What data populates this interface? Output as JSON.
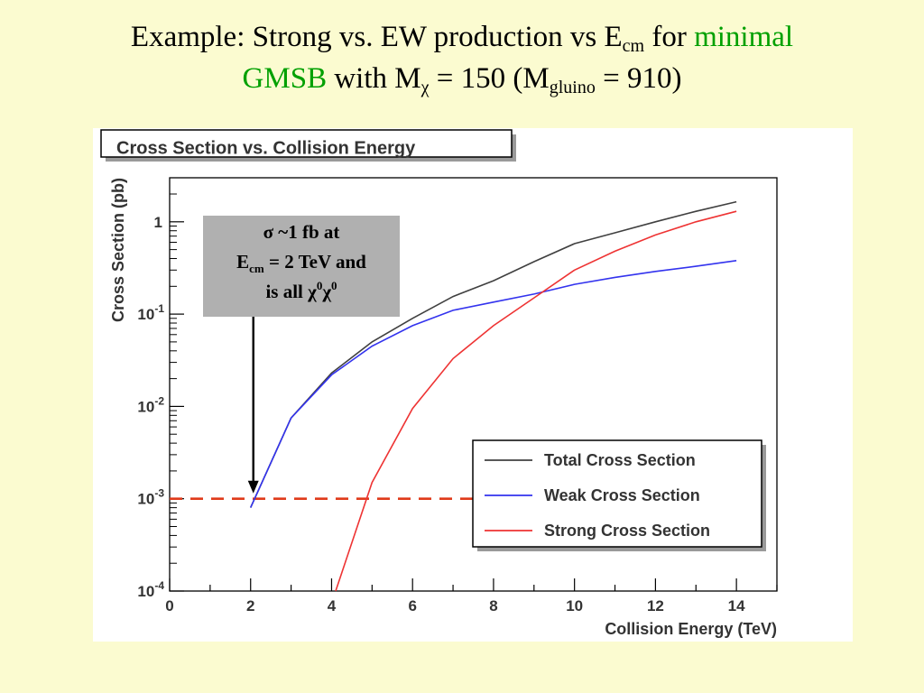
{
  "slide": {
    "title_line1_a": "Example: Strong vs. EW production vs E",
    "title_line1_sub": "cm",
    "title_line1_b": " for ",
    "title_line1_green": "minimal",
    "title_line2_green": "GMSB",
    "title_line2_a": " with M",
    "title_line2_sub1": "χ",
    "title_line2_b": " = 150 (M",
    "title_line2_sub2": "gluino",
    "title_line2_c": " = 910)"
  },
  "annotation": {
    "line1": "σ ~1 fb at",
    "line2_a": "E",
    "line2_sub": "cm",
    "line2_b": " = 2 TeV and",
    "line3_a": "is all χ",
    "line3_sup1": "0",
    "line3_mid": "χ",
    "line3_sup2": "0",
    "box_color": "#b0b0b0"
  },
  "chart_data": {
    "type": "line",
    "title": "Cross Section vs. Collision Energy",
    "xlabel": "Collision Energy (TeV)",
    "ylabel": "Cross Section (pb)",
    "xlim": [
      0,
      15
    ],
    "ylim": [
      0.0001,
      3
    ],
    "ylog": true,
    "x_ticks": [
      0,
      2,
      4,
      6,
      8,
      10,
      12,
      14
    ],
    "x_tick_labels": [
      "0",
      "2",
      "4",
      "6",
      "8",
      "10",
      "12",
      "14"
    ],
    "y_ticks": [
      0.0001,
      0.001,
      0.01,
      0.1,
      1
    ],
    "y_tick_labels": [
      {
        "base": "10",
        "exp": "-4"
      },
      {
        "base": "10",
        "exp": "-3"
      },
      {
        "base": "10",
        "exp": "-2"
      },
      {
        "base": "10",
        "exp": "-1"
      },
      {
        "base": "1",
        "exp": ""
      }
    ],
    "legend_position": "bottom-right",
    "series": [
      {
        "name": "Total Cross Section",
        "color": "#404040",
        "points": [
          [
            2,
            0.0008
          ],
          [
            3,
            0.0075
          ],
          [
            4,
            0.023
          ],
          [
            5,
            0.05
          ],
          [
            6,
            0.09
          ],
          [
            7,
            0.155
          ],
          [
            8,
            0.23
          ],
          [
            9,
            0.37
          ],
          [
            10,
            0.58
          ],
          [
            11,
            0.76
          ],
          [
            12,
            1.0
          ],
          [
            13,
            1.3
          ],
          [
            14,
            1.65
          ]
        ]
      },
      {
        "name": "Weak Cross Section",
        "color": "#3333ee",
        "points": [
          [
            2,
            0.0008
          ],
          [
            3,
            0.0075
          ],
          [
            4,
            0.022
          ],
          [
            5,
            0.045
          ],
          [
            6,
            0.075
          ],
          [
            7,
            0.11
          ],
          [
            8,
            0.135
          ],
          [
            9,
            0.165
          ],
          [
            10,
            0.21
          ],
          [
            11,
            0.25
          ],
          [
            12,
            0.29
          ],
          [
            13,
            0.33
          ],
          [
            14,
            0.38
          ]
        ]
      },
      {
        "name": "Strong Cross Section",
        "color": "#ee3333",
        "points": [
          [
            4.1,
            0.0001
          ],
          [
            5,
            0.0015
          ],
          [
            6,
            0.0095
          ],
          [
            7,
            0.033
          ],
          [
            8,
            0.075
          ],
          [
            9,
            0.15
          ],
          [
            10,
            0.3
          ],
          [
            11,
            0.48
          ],
          [
            12,
            0.72
          ],
          [
            13,
            1.0
          ],
          [
            14,
            1.3
          ]
        ]
      }
    ],
    "reference_line": {
      "y": 0.001,
      "x_start": 0,
      "x_end": 8.0,
      "color": "#e03a1a",
      "dashed": true
    },
    "arrow": {
      "x": 2,
      "y": 0.001
    }
  }
}
